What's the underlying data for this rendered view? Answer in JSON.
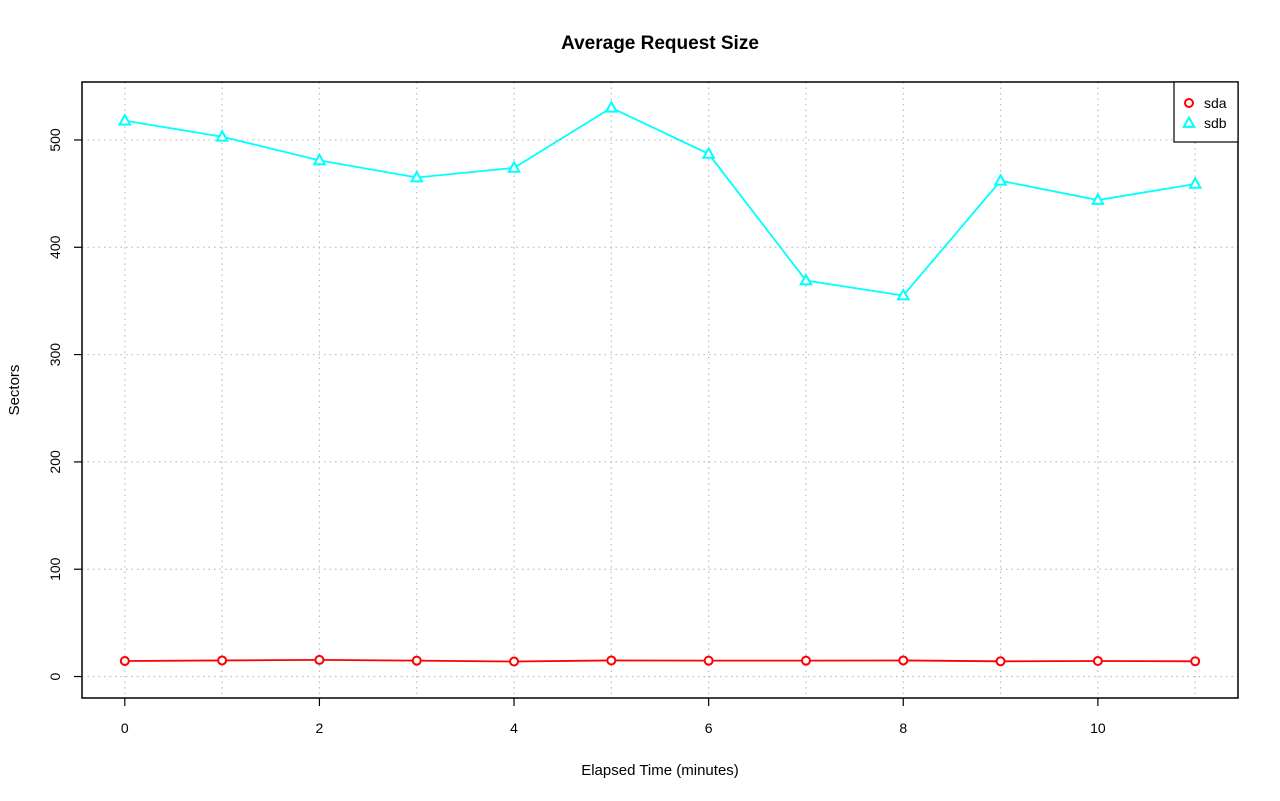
{
  "chart_data": {
    "type": "line",
    "title": "Average Request Size",
    "xlabel": "Elapsed Time (minutes)",
    "ylabel": "Sectors",
    "xlim": [
      -0.44,
      11.44
    ],
    "ylim": [
      -20,
      554
    ],
    "xticks": [
      0,
      2,
      4,
      6,
      8,
      10
    ],
    "yticks": [
      0,
      100,
      200,
      300,
      400,
      500
    ],
    "xgrid": [
      0,
      1,
      2,
      3,
      4,
      5,
      6,
      7,
      8,
      9,
      10,
      11
    ],
    "grid": true,
    "legend_position": "top-right",
    "x": [
      0,
      1,
      2,
      3,
      4,
      5,
      6,
      7,
      8,
      9,
      10,
      11
    ],
    "series": [
      {
        "name": "sda",
        "color": "#ff0000",
        "marker": "circle",
        "values": [
          14.5,
          15,
          15.5,
          14.8,
          14,
          15,
          14.8,
          14.8,
          15,
          14.2,
          14.5,
          14.2
        ]
      },
      {
        "name": "sdb",
        "color": "#00ffff",
        "marker": "triangle",
        "values": [
          518,
          503,
          481,
          465,
          474,
          530,
          487,
          369,
          355,
          462,
          444,
          459
        ]
      }
    ]
  }
}
